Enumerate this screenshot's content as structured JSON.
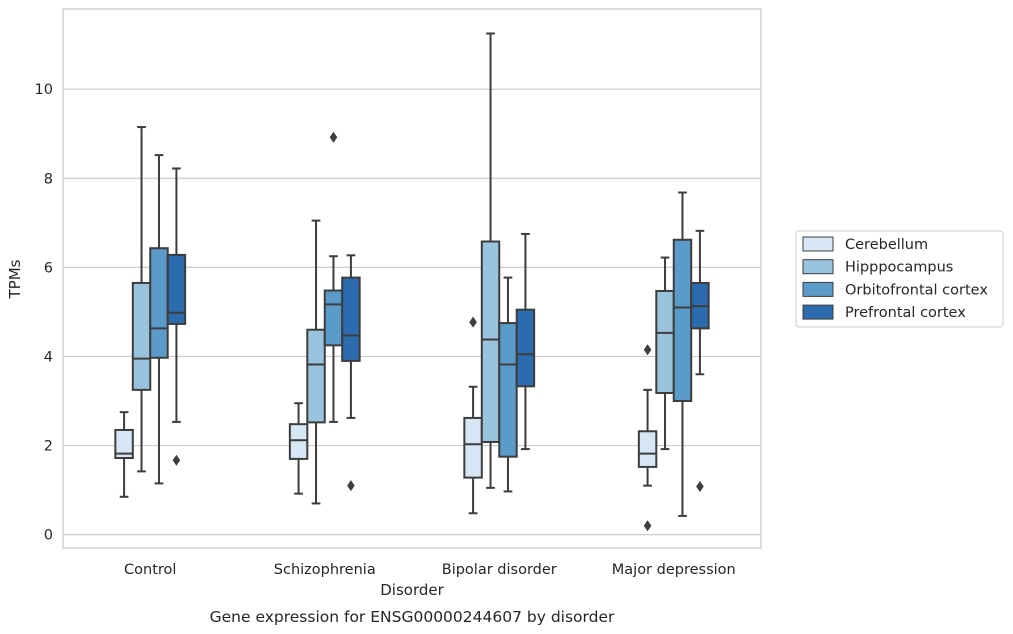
{
  "chart_data": {
    "type": "boxplot",
    "xlabel": "Disorder",
    "ylabel": "TPMs",
    "caption": "Gene expression for ENSG00000244607 by disorder",
    "ylim": [
      -0.3,
      11.8
    ],
    "yticks": [
      0,
      2,
      4,
      6,
      8,
      10
    ],
    "grid": "horizontal",
    "legend_position": "right",
    "categories": [
      "Control",
      "Schizophrenia",
      "Bipolar disorder",
      "Major depression"
    ],
    "series": [
      {
        "name": "Cerebellum",
        "color": "#d7e6f4",
        "boxes": [
          {
            "whisker_low": 0.85,
            "q1": 1.72,
            "median": 1.82,
            "q3": 2.35,
            "whisker_high": 2.75,
            "outliers": []
          },
          {
            "whisker_low": 0.92,
            "q1": 1.7,
            "median": 2.12,
            "q3": 2.48,
            "whisker_high": 2.95,
            "outliers": []
          },
          {
            "whisker_low": 0.48,
            "q1": 1.28,
            "median": 2.03,
            "q3": 2.62,
            "whisker_high": 3.32,
            "outliers": [
              4.77
            ]
          },
          {
            "whisker_low": 1.1,
            "q1": 1.52,
            "median": 1.82,
            "q3": 2.32,
            "whisker_high": 3.25,
            "outliers": [
              4.15,
              0.2
            ]
          }
        ]
      },
      {
        "name": "Hipppocampus",
        "color": "#9ac4de",
        "boxes": [
          {
            "whisker_low": 1.42,
            "q1": 3.25,
            "median": 3.95,
            "q3": 5.65,
            "whisker_high": 9.15,
            "outliers": []
          },
          {
            "whisker_low": 0.7,
            "q1": 2.52,
            "median": 3.82,
            "q3": 4.6,
            "whisker_high": 7.05,
            "outliers": []
          },
          {
            "whisker_low": 1.05,
            "q1": 2.08,
            "median": 4.38,
            "q3": 6.58,
            "whisker_high": 11.25,
            "outliers": []
          },
          {
            "whisker_low": 1.92,
            "q1": 3.18,
            "median": 4.53,
            "q3": 5.47,
            "whisker_high": 6.22,
            "outliers": []
          }
        ]
      },
      {
        "name": "Orbitofrontal cortex",
        "color": "#5a9bc9",
        "boxes": [
          {
            "whisker_low": 1.15,
            "q1": 3.97,
            "median": 4.63,
            "q3": 6.43,
            "whisker_high": 8.52,
            "outliers": []
          },
          {
            "whisker_low": 2.53,
            "q1": 4.25,
            "median": 5.17,
            "q3": 5.48,
            "whisker_high": 6.25,
            "outliers": [
              8.92
            ]
          },
          {
            "whisker_low": 0.97,
            "q1": 1.75,
            "median": 3.82,
            "q3": 4.75,
            "whisker_high": 5.77,
            "outliers": []
          },
          {
            "whisker_low": 0.42,
            "q1": 3.0,
            "median": 5.1,
            "q3": 6.62,
            "whisker_high": 7.68,
            "outliers": []
          }
        ]
      },
      {
        "name": "Prefrontal cortex",
        "color": "#2b6bae",
        "boxes": [
          {
            "whisker_low": 2.53,
            "q1": 4.73,
            "median": 4.98,
            "q3": 6.28,
            "whisker_high": 8.22,
            "outliers": [
              1.67
            ]
          },
          {
            "whisker_low": 2.62,
            "q1": 3.9,
            "median": 4.47,
            "q3": 5.77,
            "whisker_high": 6.27,
            "outliers": [
              1.1
            ]
          },
          {
            "whisker_low": 1.92,
            "q1": 3.33,
            "median": 4.05,
            "q3": 5.05,
            "whisker_high": 6.75,
            "outliers": []
          },
          {
            "whisker_low": 3.6,
            "q1": 4.63,
            "median": 5.13,
            "q3": 5.65,
            "whisker_high": 6.82,
            "outliers": [
              1.08
            ]
          }
        ]
      }
    ]
  }
}
